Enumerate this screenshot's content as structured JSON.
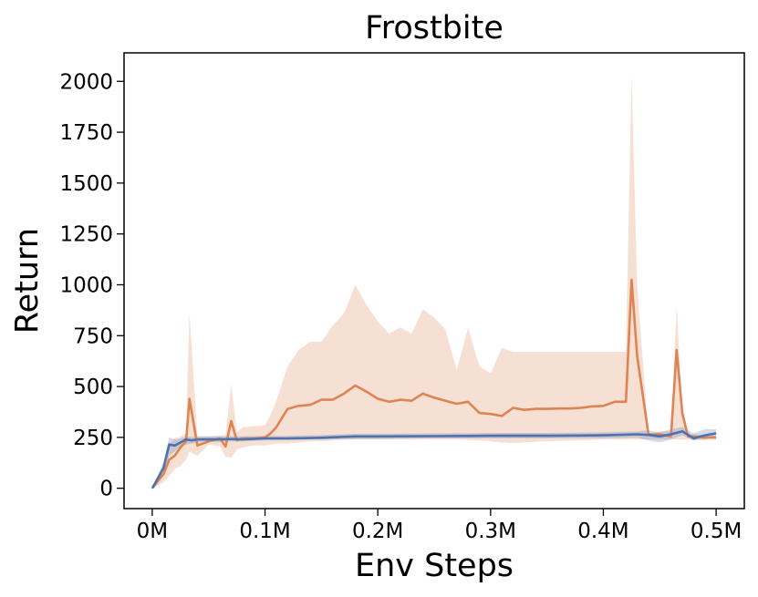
{
  "chart_data": {
    "type": "line",
    "title": "Frostbite",
    "xlabel": "Env Steps",
    "ylabel": "Return",
    "xlim": [
      -0.025,
      0.525
    ],
    "ylim": [
      -100,
      2140
    ],
    "xticks": [
      {
        "value": 0.0,
        "label": "0M"
      },
      {
        "value": 0.1,
        "label": "0.1M"
      },
      {
        "value": 0.2,
        "label": "0.2M"
      },
      {
        "value": 0.3,
        "label": "0.3M"
      },
      {
        "value": 0.4,
        "label": "0.4M"
      },
      {
        "value": 0.5,
        "label": "0.5M"
      }
    ],
    "yticks": [
      {
        "value": 0,
        "label": "0"
      },
      {
        "value": 250,
        "label": "250"
      },
      {
        "value": 500,
        "label": "500"
      },
      {
        "value": 750,
        "label": "750"
      },
      {
        "value": 1000,
        "label": "1000"
      },
      {
        "value": 1250,
        "label": "1250"
      },
      {
        "value": 1500,
        "label": "1500"
      },
      {
        "value": 1750,
        "label": "1750"
      },
      {
        "value": 2000,
        "label": "2000"
      }
    ],
    "grid": false,
    "legend": false,
    "series": [
      {
        "color": "#dd8452",
        "x": [
          0.0,
          0.01,
          0.015,
          0.02,
          0.025,
          0.03,
          0.033,
          0.04,
          0.05,
          0.06,
          0.065,
          0.07,
          0.075,
          0.08,
          0.09,
          0.1,
          0.105,
          0.11,
          0.12,
          0.13,
          0.14,
          0.15,
          0.16,
          0.17,
          0.18,
          0.19,
          0.2,
          0.21,
          0.22,
          0.23,
          0.24,
          0.25,
          0.26,
          0.27,
          0.28,
          0.29,
          0.3,
          0.31,
          0.32,
          0.33,
          0.34,
          0.35,
          0.36,
          0.37,
          0.38,
          0.39,
          0.4,
          0.41,
          0.42,
          0.425,
          0.43,
          0.44,
          0.45,
          0.46,
          0.465,
          0.47,
          0.475,
          0.48,
          0.49,
          0.5
        ],
        "y": [
          0,
          70,
          140,
          160,
          200,
          230,
          440,
          210,
          230,
          245,
          205,
          330,
          235,
          245,
          245,
          250,
          270,
          300,
          390,
          405,
          410,
          435,
          435,
          465,
          505,
          475,
          440,
          425,
          435,
          430,
          465,
          445,
          430,
          415,
          425,
          370,
          365,
          355,
          395,
          385,
          390,
          390,
          392,
          392,
          395,
          402,
          405,
          425,
          425,
          1025,
          650,
          265,
          265,
          255,
          680,
          370,
          255,
          255,
          250,
          250
        ],
        "lower": [
          0,
          30,
          60,
          95,
          110,
          140,
          180,
          160,
          215,
          205,
          155,
          150,
          190,
          200,
          210,
          210,
          215,
          220,
          220,
          225,
          230,
          230,
          235,
          238,
          240,
          240,
          240,
          240,
          240,
          240,
          240,
          240,
          240,
          240,
          238,
          235,
          230,
          225,
          222,
          225,
          228,
          230,
          232,
          234,
          236,
          238,
          240,
          240,
          240,
          240,
          240,
          240,
          240,
          240,
          240,
          240,
          238,
          238,
          238,
          238
        ],
        "upper": [
          0,
          110,
          215,
          245,
          255,
          270,
          865,
          255,
          255,
          260,
          260,
          515,
          275,
          300,
          305,
          310,
          360,
          430,
          600,
          680,
          720,
          720,
          800,
          860,
          1000,
          900,
          820,
          760,
          790,
          760,
          880,
          840,
          780,
          580,
          790,
          600,
          565,
          690,
          670,
          670,
          670,
          670,
          670,
          670,
          670,
          670,
          670,
          670,
          670,
          2030,
          1000,
          260,
          280,
          280,
          895,
          380,
          270,
          265,
          262,
          260
        ]
      },
      {
        "color": "#4c72b0",
        "x": [
          0.0,
          0.01,
          0.015,
          0.02,
          0.025,
          0.03,
          0.035,
          0.04,
          0.05,
          0.06,
          0.07,
          0.08,
          0.1,
          0.12,
          0.15,
          0.18,
          0.2,
          0.25,
          0.3,
          0.35,
          0.4,
          0.43,
          0.44,
          0.45,
          0.46,
          0.47,
          0.48,
          0.49,
          0.5
        ],
        "y": [
          0,
          100,
          215,
          210,
          225,
          240,
          235,
          240,
          240,
          240,
          242,
          240,
          245,
          245,
          248,
          255,
          255,
          256,
          258,
          258,
          260,
          265,
          262,
          255,
          265,
          280,
          245,
          260,
          270
        ],
        "lower": [
          0,
          70,
          160,
          180,
          205,
          215,
          220,
          225,
          228,
          228,
          230,
          230,
          235,
          236,
          240,
          242,
          242,
          245,
          245,
          245,
          245,
          248,
          235,
          225,
          240,
          260,
          235,
          240,
          250
        ],
        "upper": [
          0,
          130,
          250,
          240,
          245,
          255,
          252,
          255,
          255,
          255,
          256,
          256,
          257,
          258,
          262,
          268,
          268,
          270,
          272,
          272,
          275,
          280,
          285,
          275,
          290,
          300,
          270,
          290,
          290
        ]
      }
    ]
  }
}
